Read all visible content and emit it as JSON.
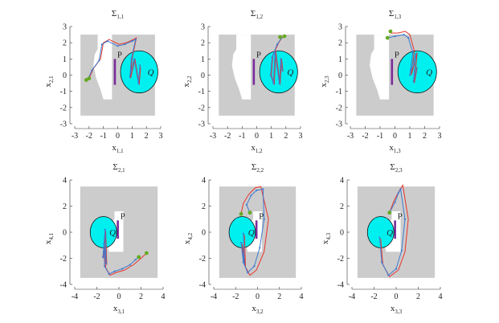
{
  "figure": {
    "rows": 2,
    "cols": 3
  },
  "colors": {
    "obstacle": "#cccccc",
    "free": "#ffffff",
    "goal": "#00f0f0",
    "marker": "#7a2b9a",
    "series_red": "#e8332b",
    "series_blue": "#3c7bd1",
    "start_dot": "#66aa22"
  },
  "chart_data": [
    {
      "type": "line",
      "title_main": "Σ",
      "title_sub": "1,1",
      "xlabel_main": "x",
      "xlabel_sub": "1,1",
      "ylabel_main": "x",
      "ylabel_sub": "2,1",
      "xlim": [
        -3,
        3
      ],
      "ylim": [
        -3,
        3
      ],
      "xticks": [
        -3,
        -2,
        -1,
        0,
        1,
        2,
        3
      ],
      "yticks": [
        -3,
        -2,
        -1,
        0,
        1,
        2,
        3
      ],
      "region": {
        "x": [
          -2.6,
          2.6
        ],
        "y": [
          -2.5,
          2.5
        ]
      },
      "hole": [
        [
          -1.4,
          2.5
        ],
        [
          -0.4,
          2.5
        ],
        [
          -0.4,
          -1.5
        ],
        [
          -1.0,
          -1.5
        ],
        [
          -1.2,
          -0.9
        ],
        [
          -1.5,
          -0.2
        ],
        [
          -1.7,
          0.6
        ],
        [
          -1.6,
          1.3
        ],
        [
          -1.4,
          1.6
        ]
      ],
      "marker": {
        "x": -0.2,
        "y": [
          -0.6,
          1.0
        ]
      },
      "marker_label": "P",
      "goal": {
        "cx": 1.5,
        "cy": 0.2,
        "r": 1.3
      },
      "goal_label": "Q",
      "series": [
        {
          "color": "red",
          "points": [
            [
              -2.0,
              -0.2
            ],
            [
              -1.7,
              0.4
            ],
            [
              -1.2,
              1.0
            ],
            [
              -1.0,
              2.0
            ],
            [
              -0.6,
              2.2
            ],
            [
              0.1,
              1.9
            ],
            [
              0.6,
              2.0
            ],
            [
              1.1,
              2.2
            ],
            [
              1.3,
              2.3
            ],
            [
              1.0,
              1.0
            ],
            [
              0.9,
              -0.2
            ],
            [
              1.2,
              1.0
            ],
            [
              1.5,
              -0.6
            ],
            [
              1.6,
              0.5
            ]
          ]
        },
        {
          "color": "blue",
          "points": [
            [
              -2.1,
              -0.3
            ],
            [
              -1.8,
              0.3
            ],
            [
              -1.3,
              0.9
            ],
            [
              -1.1,
              1.9
            ],
            [
              -0.7,
              2.1
            ],
            [
              0.0,
              1.8
            ],
            [
              0.5,
              1.9
            ],
            [
              1.0,
              2.1
            ],
            [
              1.25,
              2.2
            ],
            [
              0.95,
              1.0
            ],
            [
              0.85,
              -0.1
            ],
            [
              1.15,
              1.0
            ],
            [
              1.45,
              -0.5
            ],
            [
              1.55,
              0.6
            ]
          ]
        }
      ],
      "start": [
        [
          -2.2,
          -0.3
        ],
        [
          -2.0,
          -0.2
        ]
      ]
    },
    {
      "type": "line",
      "title_main": "Σ",
      "title_sub": "1,2",
      "xlabel_main": "x",
      "xlabel_sub": "1,2",
      "ylabel_main": "x",
      "ylabel_sub": "2,2",
      "xlim": [
        -3,
        3
      ],
      "ylim": [
        -3,
        3
      ],
      "xticks": [
        -3,
        -2,
        -1,
        0,
        1,
        2,
        3
      ],
      "yticks": [
        -3,
        -2,
        -1,
        0,
        1,
        2,
        3
      ],
      "region": {
        "x": [
          -2.6,
          2.6
        ],
        "y": [
          -2.5,
          2.5
        ]
      },
      "hole": [
        [
          -1.4,
          2.5
        ],
        [
          -0.4,
          2.5
        ],
        [
          -0.4,
          -1.5
        ],
        [
          -1.0,
          -1.5
        ],
        [
          -1.2,
          -0.9
        ],
        [
          -1.5,
          -0.2
        ],
        [
          -1.7,
          0.6
        ],
        [
          -1.6,
          1.3
        ],
        [
          -1.4,
          1.6
        ]
      ],
      "marker": {
        "x": -0.2,
        "y": [
          -0.6,
          1.0
        ]
      },
      "marker_label": "P",
      "goal": {
        "cx": 1.5,
        "cy": 0.2,
        "r": 1.3
      },
      "goal_label": "Q",
      "series": [
        {
          "color": "red",
          "points": [
            [
              1.8,
              2.4
            ],
            [
              1.5,
              2.0
            ],
            [
              1.1,
              1.2
            ],
            [
              1.0,
              0.0
            ],
            [
              1.2,
              -0.6
            ],
            [
              1.3,
              1.5
            ],
            [
              1.6,
              -0.6
            ],
            [
              1.7,
              1.0
            ],
            [
              1.8,
              0.2
            ]
          ]
        },
        {
          "color": "blue",
          "points": [
            [
              1.7,
              2.3
            ],
            [
              1.4,
              1.9
            ],
            [
              1.05,
              1.1
            ],
            [
              0.95,
              0.0
            ],
            [
              1.15,
              -0.5
            ],
            [
              1.25,
              1.4
            ],
            [
              1.55,
              -0.5
            ],
            [
              1.65,
              1.0
            ],
            [
              1.75,
              0.3
            ]
          ]
        }
      ],
      "start": [
        [
          1.6,
          2.35
        ],
        [
          1.9,
          2.4
        ]
      ]
    },
    {
      "type": "line",
      "title_main": "Σ",
      "title_sub": "1,3",
      "xlabel_main": "x",
      "xlabel_sub": "1,3",
      "ylabel_main": "x",
      "ylabel_sub": "2,3",
      "xlim": [
        -3,
        3
      ],
      "ylim": [
        -3,
        3
      ],
      "xticks": [
        -3,
        -2,
        -1,
        0,
        1,
        2,
        3
      ],
      "yticks": [
        -3,
        -2,
        -1,
        0,
        1,
        2,
        3
      ],
      "region": {
        "x": [
          -2.6,
          2.6
        ],
        "y": [
          -2.5,
          2.5
        ]
      },
      "hole": [
        [
          -1.4,
          2.5
        ],
        [
          -0.4,
          2.5
        ],
        [
          -0.4,
          -1.5
        ],
        [
          -1.0,
          -1.5
        ],
        [
          -1.2,
          -0.9
        ],
        [
          -1.5,
          -0.2
        ],
        [
          -1.7,
          0.6
        ],
        [
          -1.6,
          1.3
        ],
        [
          -1.4,
          1.6
        ]
      ],
      "marker": {
        "x": -0.2,
        "y": [
          -0.6,
          1.0
        ]
      },
      "marker_label": "P",
      "goal": {
        "cx": 1.5,
        "cy": 0.2,
        "r": 1.3
      },
      "goal_label": "Q",
      "series": [
        {
          "color": "red",
          "points": [
            [
              -0.3,
              2.6
            ],
            [
              0.2,
              2.6
            ],
            [
              0.7,
              2.7
            ],
            [
              1.0,
              2.5
            ],
            [
              1.3,
              1.5
            ],
            [
              1.1,
              0.0
            ],
            [
              1.5,
              1.4
            ],
            [
              1.3,
              -0.5
            ],
            [
              1.5,
              0.5
            ]
          ]
        },
        {
          "color": "blue",
          "points": [
            [
              -0.5,
              2.3
            ],
            [
              0.0,
              2.4
            ],
            [
              0.6,
              2.5
            ],
            [
              0.9,
              2.3
            ],
            [
              1.2,
              1.4
            ],
            [
              1.0,
              0.0
            ],
            [
              1.4,
              1.3
            ],
            [
              1.25,
              -0.4
            ],
            [
              1.45,
              0.4
            ]
          ]
        }
      ],
      "start": [
        [
          -0.3,
          2.7
        ],
        [
          -0.5,
          2.3
        ]
      ]
    },
    {
      "type": "line",
      "title_main": "Σ",
      "title_sub": "2,1",
      "xlabel_main": "x",
      "xlabel_sub": "3,1",
      "ylabel_main": "x",
      "ylabel_sub": "4,1",
      "xlim": [
        -4,
        4
      ],
      "ylim": [
        -4,
        4
      ],
      "xticks": [
        -4,
        -2,
        0,
        2,
        4
      ],
      "yticks": [
        -4,
        -2,
        0,
        2,
        4
      ],
      "region": {
        "x": [
          -3.5,
          3.5
        ],
        "y": [
          -3.5,
          3.5
        ]
      },
      "hole": [
        [
          -0.4,
          1.6
        ],
        [
          0.4,
          1.6
        ],
        [
          0.4,
          -1.5
        ],
        [
          -0.9,
          -1.5
        ],
        [
          -1.1,
          -0.8
        ],
        [
          -0.8,
          -0.2
        ],
        [
          -0.8,
          0.6
        ],
        [
          -0.4,
          1.0
        ]
      ],
      "marker": {
        "x": -0.1,
        "y": [
          -0.5,
          0.9
        ]
      },
      "marker_label": "P",
      "goal": {
        "cx": -1.4,
        "cy": 0.0,
        "r": 1.2
      },
      "goal_label": "Q",
      "series": [
        {
          "color": "red",
          "points": [
            [
              2.5,
              -1.6
            ],
            [
              2.0,
              -2.0
            ],
            [
              1.3,
              -2.5
            ],
            [
              0.5,
              -2.9
            ],
            [
              -0.3,
              -3.1
            ],
            [
              -0.8,
              -3.3
            ],
            [
              -1.2,
              -2.7
            ],
            [
              -1.3,
              -1.0
            ],
            [
              -1.1,
              -2.5
            ],
            [
              -1.2,
              0.1
            ],
            [
              -1.4,
              -2.0
            ]
          ]
        },
        {
          "color": "blue",
          "points": [
            [
              1.8,
              -1.9
            ],
            [
              1.5,
              -2.1
            ],
            [
              1.0,
              -2.5
            ],
            [
              0.3,
              -2.8
            ],
            [
              -0.4,
              -3.0
            ],
            [
              -0.9,
              -3.2
            ],
            [
              -1.3,
              -2.6
            ],
            [
              -1.35,
              -0.9
            ],
            [
              -1.15,
              -2.4
            ],
            [
              -1.25,
              0.2
            ],
            [
              -1.45,
              -1.9
            ]
          ]
        }
      ],
      "start": [
        [
          2.5,
          -1.6
        ],
        [
          1.8,
          -1.9
        ]
      ]
    },
    {
      "type": "line",
      "title_main": "Σ",
      "title_sub": "2,2",
      "xlabel_main": "x",
      "xlabel_sub": "3,2",
      "ylabel_main": "x",
      "ylabel_sub": "4,2",
      "xlim": [
        -4,
        4
      ],
      "ylim": [
        -4,
        4
      ],
      "xticks": [
        -4,
        -2,
        0,
        2,
        4
      ],
      "yticks": [
        -4,
        -2,
        0,
        2,
        4
      ],
      "region": {
        "x": [
          -3.5,
          3.5
        ],
        "y": [
          -3.5,
          3.5
        ]
      },
      "hole": [
        [
          -0.4,
          1.6
        ],
        [
          0.4,
          1.6
        ],
        [
          0.4,
          -1.5
        ],
        [
          -0.9,
          -1.5
        ],
        [
          -1.1,
          -0.8
        ],
        [
          -0.8,
          -0.2
        ],
        [
          -0.8,
          0.6
        ],
        [
          -0.4,
          1.0
        ]
      ],
      "marker": {
        "x": -0.1,
        "y": [
          -0.5,
          0.9
        ]
      },
      "marker_label": "P",
      "goal": {
        "cx": -1.4,
        "cy": 0.0,
        "r": 1.2
      },
      "goal_label": "Q",
      "series": [
        {
          "color": "red",
          "points": [
            [
              -1.5,
              1.4
            ],
            [
              -1.3,
              2.2
            ],
            [
              -0.8,
              2.9
            ],
            [
              -0.2,
              3.4
            ],
            [
              0.3,
              3.5
            ],
            [
              1.0,
              1.0
            ],
            [
              0.6,
              -1.5
            ],
            [
              -0.1,
              -2.9
            ],
            [
              -0.7,
              -3.3
            ],
            [
              -1.2,
              -2.5
            ],
            [
              -1.4,
              -0.9
            ],
            [
              -1.1,
              -2.6
            ],
            [
              -1.2,
              -0.2
            ]
          ]
        },
        {
          "color": "blue",
          "points": [
            [
              -0.7,
              1.5
            ],
            [
              -1.0,
              2.1
            ],
            [
              -0.6,
              2.8
            ],
            [
              -0.1,
              3.2
            ],
            [
              0.5,
              3.3
            ],
            [
              0.6,
              1.0
            ],
            [
              0.2,
              -1.2
            ],
            [
              -0.3,
              -2.6
            ],
            [
              -0.9,
              -3.1
            ],
            [
              -1.3,
              -2.3
            ],
            [
              -1.5,
              -0.8
            ],
            [
              -1.2,
              -2.4
            ],
            [
              -1.3,
              -0.1
            ]
          ]
        }
      ],
      "start": [
        [
          -1.5,
          1.4
        ],
        [
          -0.7,
          1.5
        ]
      ]
    },
    {
      "type": "line",
      "title_main": "Σ",
      "title_sub": "2,3",
      "xlabel_main": "x",
      "xlabel_sub": "3,3",
      "ylabel_main": "x",
      "ylabel_sub": "4,3",
      "xlim": [
        -4,
        4
      ],
      "ylim": [
        -4,
        4
      ],
      "xticks": [
        -4,
        -2,
        0,
        2,
        4
      ],
      "yticks": [
        -4,
        -2,
        0,
        2,
        4
      ],
      "region": {
        "x": [
          -3.5,
          3.5
        ],
        "y": [
          -3.5,
          3.5
        ]
      },
      "hole": [
        [
          -0.4,
          1.6
        ],
        [
          0.4,
          1.6
        ],
        [
          0.4,
          -1.5
        ],
        [
          -0.9,
          -1.5
        ],
        [
          -1.1,
          -0.8
        ],
        [
          -0.8,
          -0.2
        ],
        [
          -0.8,
          0.6
        ],
        [
          -0.4,
          1.0
        ]
      ],
      "marker": {
        "x": -0.1,
        "y": [
          -0.5,
          0.9
        ]
      },
      "marker_label": "P",
      "goal": {
        "cx": -1.4,
        "cy": 0.0,
        "r": 1.2
      },
      "goal_label": "Q",
      "series": [
        {
          "color": "red",
          "points": [
            [
              -0.6,
              1.5
            ],
            [
              -0.2,
              2.4
            ],
            [
              0.3,
              3.2
            ],
            [
              0.6,
              3.6
            ],
            [
              1.1,
              1.0
            ],
            [
              0.8,
              -1.5
            ],
            [
              0.2,
              -2.9
            ],
            [
              -0.6,
              -3.4
            ],
            [
              -1.2,
              -2.5
            ],
            [
              -1.4,
              -0.5
            ]
          ]
        },
        {
          "color": "blue",
          "points": [
            [
              -0.6,
              1.5
            ],
            [
              -0.1,
              2.3
            ],
            [
              0.2,
              3.0
            ],
            [
              0.4,
              3.3
            ],
            [
              0.8,
              1.0
            ],
            [
              0.5,
              -1.4
            ],
            [
              0.0,
              -2.8
            ],
            [
              -0.7,
              -3.3
            ],
            [
              -1.3,
              -2.3
            ],
            [
              -1.5,
              -0.4
            ]
          ]
        }
      ],
      "start": [
        [
          -0.6,
          1.5
        ]
      ]
    }
  ]
}
